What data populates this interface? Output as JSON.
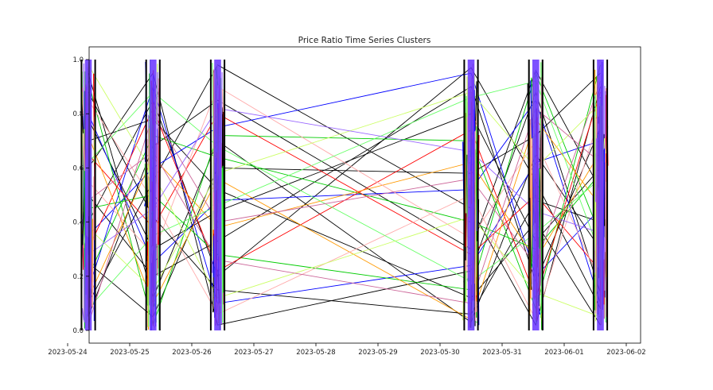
{
  "chart_data": {
    "type": "line",
    "title": "Price Ratio Time Series Clusters",
    "xlabel": "",
    "ylabel": "",
    "x_range": [
      "2023-05-24",
      "2023-06-02"
    ],
    "ylim": [
      0,
      1
    ],
    "x_ticks": [
      "2023-05-24",
      "2023-05-25",
      "2023-05-26",
      "2023-05-27",
      "2023-05-28",
      "2023-05-29",
      "2023-05-30",
      "2023-05-31",
      "2023-06-01",
      "2023-06-02"
    ],
    "y_ticks": [
      "0.0",
      "0.2",
      "0.4",
      "0.6",
      "0.8",
      "1.0"
    ],
    "grid": false,
    "legend": "none",
    "observation_clusters": [
      "2023-05-24 08:00",
      "2023-05-25 09:00",
      "2023-05-26 10:00",
      "2023-05-30 12:00",
      "2023-05-31 13:00",
      "2023-06-01 14:00"
    ],
    "series_colors": [
      "#000000",
      "#0000ff",
      "#00cc00",
      "#ff0000",
      "#ff9900",
      "#ffaaaa",
      "#66ff66",
      "#ccff66",
      "#9966ff",
      "#cc6699"
    ],
    "band_color": "#6633ff",
    "series": [
      {
        "color": "#000000",
        "values": [
          0.95,
          0.12,
          0.7,
          0.03,
          0.65,
          0.3
        ]
      },
      {
        "color": "#000000",
        "values": [
          0.4,
          0.85,
          0.2,
          0.97,
          0.55,
          0.08
        ]
      },
      {
        "color": "#000000",
        "values": [
          0.1,
          0.55,
          0.98,
          0.45,
          0.02,
          0.9
        ]
      },
      {
        "color": "#000000",
        "values": [
          0.78,
          0.3,
          0.44,
          0.8,
          0.33,
          0.6
        ]
      },
      {
        "color": "#000000",
        "values": [
          0.6,
          0.95,
          0.02,
          0.22,
          0.88,
          0.14
        ]
      },
      {
        "color": "#000000",
        "values": [
          0.25,
          0.05,
          0.6,
          0.58,
          0.72,
          0.95
        ]
      },
      {
        "color": "#000000",
        "values": [
          0.88,
          0.42,
          0.15,
          0.06,
          0.48,
          0.4
        ]
      },
      {
        "color": "#000000",
        "values": [
          0.05,
          0.68,
          0.85,
          0.3,
          0.96,
          0.52
        ]
      },
      {
        "color": "#000000",
        "values": [
          0.5,
          0.2,
          0.33,
          0.9,
          0.18,
          0.75
        ]
      },
      {
        "color": "#000000",
        "values": [
          0.7,
          0.78,
          0.52,
          0.12,
          0.4,
          0.02
        ]
      },
      {
        "color": "#0000ff",
        "values": [
          0.35,
          0.6,
          0.75,
          0.95,
          0.2,
          0.45
        ]
      },
      {
        "color": "#0000ff",
        "values": [
          0.8,
          0.25,
          0.48,
          0.52,
          0.85,
          0.1
        ]
      },
      {
        "color": "#0000ff",
        "values": [
          0.15,
          0.9,
          0.1,
          0.24,
          0.62,
          0.7
        ]
      },
      {
        "color": "#00cc00",
        "values": [
          0.92,
          0.02,
          0.72,
          0.7,
          0.08,
          0.98
        ]
      },
      {
        "color": "#00cc00",
        "values": [
          0.45,
          0.5,
          0.28,
          0.15,
          0.95,
          0.35
        ]
      },
      {
        "color": "#00cc00",
        "values": [
          0.2,
          0.72,
          0.64,
          0.4,
          0.3,
          0.58
        ]
      },
      {
        "color": "#ff0000",
        "values": [
          0.65,
          0.38,
          0.8,
          0.28,
          0.5,
          0.22
        ]
      },
      {
        "color": "#ff0000",
        "values": [
          0.3,
          0.82,
          0.22,
          0.74,
          0.12,
          0.88
        ]
      },
      {
        "color": "#ff9900",
        "values": [
          0.72,
          0.1,
          0.56,
          0.04,
          0.78,
          0.46
        ]
      },
      {
        "color": "#ff9900",
        "values": [
          0.12,
          0.64,
          0.38,
          0.62,
          0.26,
          0.66
        ]
      },
      {
        "color": "#ffaaaa",
        "values": [
          0.55,
          0.28,
          0.9,
          0.34,
          0.7,
          0.18
        ]
      },
      {
        "color": "#ffaaaa",
        "values": [
          0.85,
          0.48,
          0.06,
          0.5,
          0.04,
          0.8
        ]
      },
      {
        "color": "#66ff66",
        "values": [
          0.08,
          0.35,
          0.46,
          0.86,
          0.92,
          0.28
        ]
      },
      {
        "color": "#66ff66",
        "values": [
          0.62,
          0.88,
          0.68,
          0.18,
          0.36,
          0.56
        ]
      },
      {
        "color": "#ccff66",
        "values": [
          0.38,
          0.15,
          0.58,
          0.88,
          0.6,
          0.84
        ]
      },
      {
        "color": "#ccff66",
        "values": [
          0.98,
          0.58,
          0.12,
          0.42,
          0.14,
          0.05
        ]
      },
      {
        "color": "#9966ff",
        "values": [
          0.28,
          0.45,
          0.82,
          0.66,
          0.44,
          0.36
        ]
      },
      {
        "color": "#cc6699",
        "values": [
          0.48,
          0.66,
          0.26,
          0.1,
          0.82,
          0.62
        ]
      },
      {
        "color": "#cc6699",
        "values": [
          0.02,
          0.8,
          0.4,
          0.56,
          0.24,
          0.92
        ]
      }
    ]
  }
}
